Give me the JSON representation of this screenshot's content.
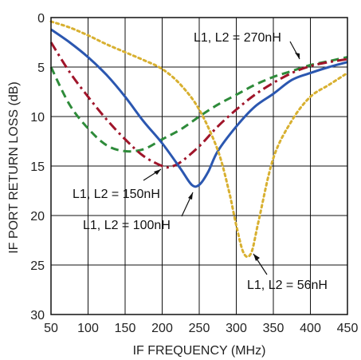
{
  "chart_data": {
    "type": "line",
    "xlabel": "IF FREQUENCY (MHz)",
    "ylabel": "IF PORT RETURN LOSS (dB)",
    "xlim": [
      50,
      450
    ],
    "ylim": [
      0,
      30
    ],
    "y_inverted": true,
    "grid": true,
    "x_ticks": [
      50,
      100,
      150,
      200,
      250,
      300,
      350,
      400,
      450
    ],
    "y_ticks": [
      0,
      5,
      10,
      15,
      20,
      25,
      30
    ],
    "series": [
      {
        "name": "L1, L2 = 270nH",
        "color": "#2e8b3a",
        "style": "dashed",
        "x": [
          50,
          75,
          100,
          125,
          150,
          175,
          200,
          225,
          250,
          275,
          300,
          325,
          350,
          375,
          400,
          425,
          450
        ],
        "y": [
          5.0,
          8.8,
          11.2,
          12.9,
          13.5,
          13.3,
          12.3,
          11.3,
          10.0,
          8.8,
          7.8,
          6.8,
          6.0,
          5.4,
          4.8,
          4.4,
          4.0
        ]
      },
      {
        "name": "L1, L2 = 150nH",
        "color": "#a0152a",
        "style": "dashdot",
        "x": [
          50,
          75,
          100,
          125,
          150,
          175,
          200,
          210,
          225,
          250,
          275,
          300,
          325,
          350,
          375,
          400,
          425,
          450
        ],
        "y": [
          2.5,
          5.5,
          8.0,
          10.3,
          12.3,
          14.0,
          15.0,
          15.1,
          14.6,
          13.0,
          11.0,
          9.3,
          7.8,
          6.6,
          5.6,
          4.9,
          4.5,
          4.2
        ]
      },
      {
        "name": "L1, L2 = 100nH",
        "color": "#2b57b0",
        "style": "solid",
        "x": [
          50,
          75,
          100,
          125,
          150,
          175,
          200,
          225,
          240,
          250,
          262,
          275,
          300,
          325,
          350,
          375,
          400,
          425,
          450
        ],
        "y": [
          1.2,
          2.5,
          4.0,
          5.8,
          8.0,
          10.5,
          12.7,
          15.3,
          16.9,
          16.9,
          15.6,
          13.5,
          11.0,
          9.0,
          7.7,
          6.3,
          5.6,
          5.0,
          4.5
        ]
      },
      {
        "name": "L1, L2 = 56nH",
        "color": "#d8b030",
        "style": "dotted",
        "x": [
          50,
          75,
          100,
          125,
          150,
          175,
          200,
          225,
          250,
          275,
          290,
          300,
          310,
          320,
          330,
          350,
          375,
          400,
          425,
          450
        ],
        "y": [
          0.4,
          1.0,
          1.8,
          2.7,
          3.5,
          4.3,
          5.2,
          6.8,
          9.3,
          13.4,
          17.5,
          21.0,
          23.8,
          23.8,
          20.6,
          14.2,
          10.4,
          8.0,
          6.8,
          5.6
        ]
      }
    ],
    "annotations": [
      {
        "text": "L1, L2 = 270nH",
        "series": "L1, L2 = 270nH"
      },
      {
        "text": "L1, L2 = 150nH",
        "series": "L1, L2 = 150nH"
      },
      {
        "text": "L1, L2 = 100nH",
        "series": "L1, L2 = 100nH"
      },
      {
        "text": "L1, L2 = 56nH",
        "series": "L1, L2 = 56nH"
      }
    ]
  }
}
